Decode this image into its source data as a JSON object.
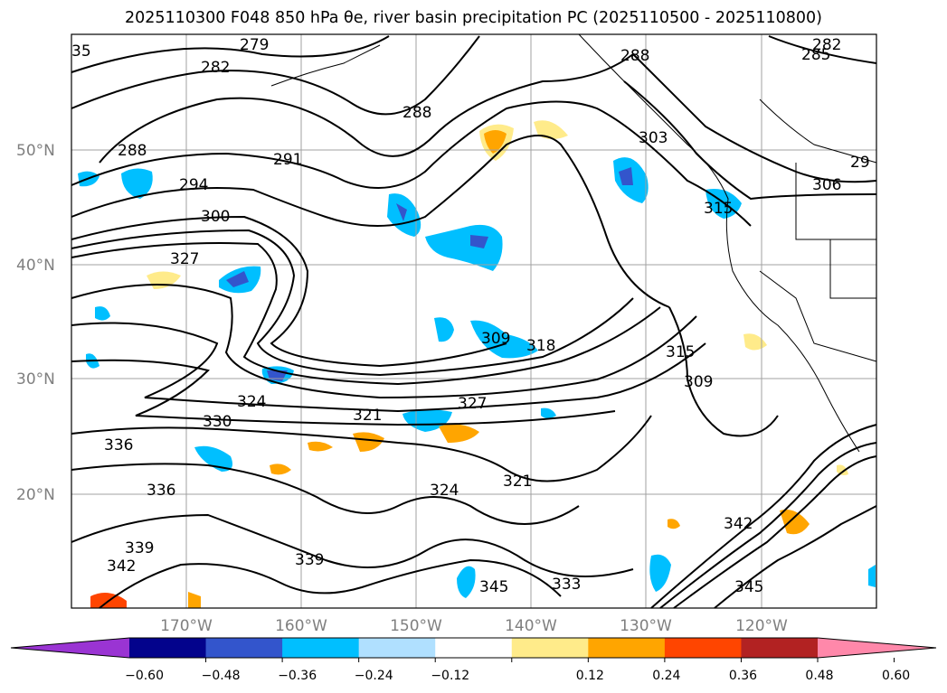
{
  "title": "2025110300 F048 850 hPa θe, river basin precipitation PC (2025110500 - 2025110800)",
  "map": {
    "lat_labels": [
      "50°N",
      "40°N",
      "30°N",
      "20°N"
    ],
    "lon_labels": [
      "170°W",
      "160°W",
      "150°W",
      "140°W",
      "130°W",
      "120°W"
    ],
    "contour_labels": [
      "279",
      "282",
      "285",
      "288",
      "291",
      "294",
      "300",
      "306",
      "309",
      "315",
      "318",
      "321",
      "324",
      "327",
      "330",
      "336",
      "339",
      "342",
      "345"
    ],
    "visible_contour_labels": [
      {
        "text": "279"
      },
      {
        "text": "282"
      },
      {
        "text": "288"
      },
      {
        "text": "288"
      },
      {
        "text": "291"
      },
      {
        "text": "294"
      },
      {
        "text": "300"
      },
      {
        "text": "327"
      },
      {
        "text": "324"
      },
      {
        "text": "330"
      },
      {
        "text": "336"
      },
      {
        "text": "336"
      },
      {
        "text": "339"
      },
      {
        "text": "339"
      },
      {
        "text": "342"
      },
      {
        "text": "309"
      },
      {
        "text": "318"
      },
      {
        "text": "327"
      },
      {
        "text": "321"
      },
      {
        "text": "324"
      },
      {
        "text": "321"
      },
      {
        "text": "345"
      },
      {
        "text": "333"
      },
      {
        "text": "288"
      },
      {
        "text": "303"
      },
      {
        "text": "315"
      },
      {
        "text": "282"
      },
      {
        "text": "285"
      },
      {
        "text": "306"
      },
      {
        "text": "29"
      },
      {
        "text": "315"
      },
      {
        "text": "309"
      },
      {
        "text": "342"
      },
      {
        "text": "345"
      },
      {
        "text": "35"
      }
    ]
  },
  "colorbar": {
    "ticks": [
      "−0.60",
      "−0.48",
      "−0.36",
      "−0.24",
      "−0.12",
      "0.12",
      "0.24",
      "0.36",
      "0.48",
      "0.60"
    ],
    "colors": [
      "#9a34d3",
      "#03038c",
      "#3355cc",
      "#00bfff",
      "#b0e0ff",
      "#ffffff",
      "#ffeb8a",
      "#ffa500",
      "#ff4500",
      "#b22222",
      "#ff88aa"
    ]
  }
}
